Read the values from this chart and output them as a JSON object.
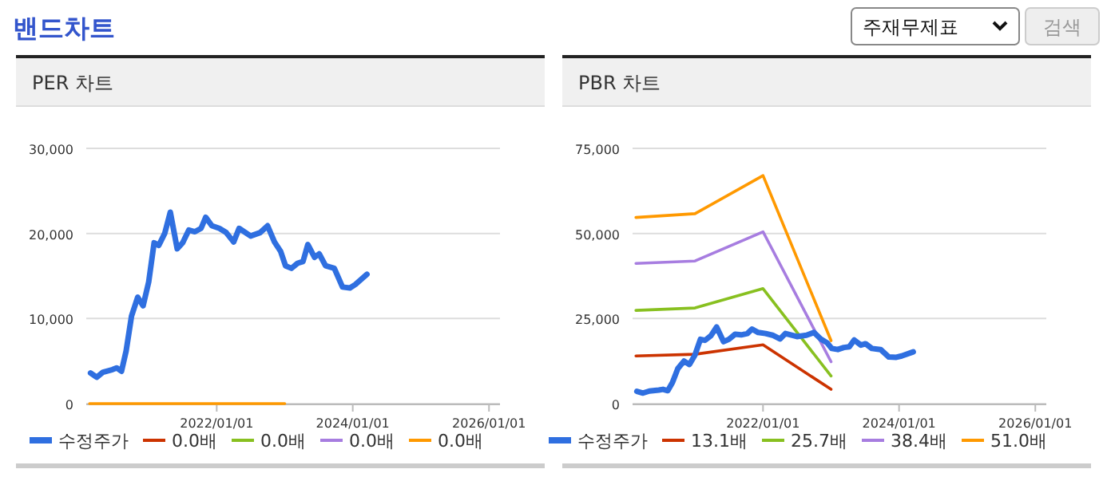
{
  "chart_data": [
    {
      "type": "other",
      "title": "밴드차트",
      "annotations": [
        "주재무제표",
        "검색"
      ]
    },
    {
      "type": "line",
      "title": "PER 차트",
      "xlim": [
        "2020-02-01",
        "2026-03-01"
      ],
      "ylim": [
        0,
        30000
      ],
      "yticks": [
        0,
        {
          "value": 10000,
          "label": "10,000"
        },
        {
          "value": 20000,
          "label": "20,000"
        },
        {
          "value": 30000,
          "label": "30,000"
        }
      ],
      "xticks": [
        {
          "value": "2022-01-01",
          "label": "2022/01/01"
        },
        {
          "value": "2024-01-01",
          "label": "2024/01/01"
        },
        {
          "value": "2026-01-01",
          "label": "2026/01/01"
        }
      ],
      "grid": "y",
      "legend": "bottom",
      "series": [
        {
          "name": "수정주가",
          "color": "#2f6fe0",
          "x": [
            "2020-02-24",
            "2020-03-28",
            "2020-05-01",
            "2020-06-21",
            "2020-07-13",
            "2020-08-08",
            "2020-09-02",
            "2020-10-01",
            "2020-11-03",
            "2020-12-02",
            "2021-01-01",
            "2021-01-30",
            "2021-02-24",
            "2021-03-28",
            "2021-04-27",
            "2021-06-03",
            "2021-07-02",
            "2021-08-04",
            "2021-09-06",
            "2021-10-09",
            "2021-11-03",
            "2021-12-06",
            "2022-01-15",
            "2022-02-21",
            "2022-04-02",
            "2022-05-01",
            "2022-07-02",
            "2022-08-22",
            "2022-10-01",
            "2022-11-07",
            "2022-12-10",
            "2023-01-05",
            "2023-02-06",
            "2023-03-11",
            "2023-04-09",
            "2023-05-05",
            "2023-06-10",
            "2023-07-05",
            "2023-08-08",
            "2023-09-24",
            "2023-11-07",
            "2023-12-17",
            "2024-01-15",
            "2024-03-17"
          ],
          "values": [
            3600,
            3100,
            3700,
            4000,
            4200,
            3800,
            6200,
            10300,
            12500,
            11500,
            14300,
            18900,
            18600,
            20000,
            22500,
            18200,
            18900,
            20400,
            20200,
            20600,
            21900,
            20900,
            20600,
            20100,
            19000,
            20600,
            19700,
            20100,
            20900,
            19000,
            17900,
            16200,
            15900,
            16500,
            16700,
            18700,
            17200,
            17600,
            16200,
            15900,
            13700,
            13600,
            14000,
            15200
          ]
        },
        {
          "name": "0.0배",
          "color": "#cc3300"
        },
        {
          "name": "0.0배",
          "color": "#88c020"
        },
        {
          "name": "0.0배",
          "color": "#a77de0"
        },
        {
          "name": "0.0배",
          "color": "#ff9900",
          "x": [
            "2020-02-19",
            "2021-01-01",
            "2022-01-01",
            "2023-01-01"
          ],
          "values": [
            0,
            0,
            0,
            0
          ]
        }
      ]
    },
    {
      "type": "line",
      "title": "PBR 차트",
      "xlim": [
        "2020-02-01",
        "2026-03-01"
      ],
      "ylim": [
        0,
        75000
      ],
      "yticks": [
        0,
        {
          "value": 25000,
          "label": "25,000"
        },
        {
          "value": 50000,
          "label": "50,000"
        },
        {
          "value": 75000,
          "label": "75,000"
        }
      ],
      "xticks": [
        {
          "value": "2022-01-01",
          "label": "2022/01/01"
        },
        {
          "value": "2024-01-01",
          "label": "2024/01/01"
        },
        {
          "value": "2026-01-01",
          "label": "2026/01/01"
        }
      ],
      "grid": "y",
      "legend": "bottom",
      "series": [
        {
          "name": "수정주가",
          "color": "#2f6fe0",
          "x": [
            "2020-02-24",
            "2020-03-28",
            "2020-05-01",
            "2020-06-21",
            "2020-07-13",
            "2020-08-08",
            "2020-09-02",
            "2020-10-01",
            "2020-11-03",
            "2020-12-02",
            "2021-01-01",
            "2021-01-30",
            "2021-02-24",
            "2021-03-28",
            "2021-04-27",
            "2021-06-03",
            "2021-07-02",
            "2021-08-04",
            "2021-09-06",
            "2021-10-09",
            "2021-11-03",
            "2021-12-06",
            "2022-01-15",
            "2022-02-21",
            "2022-04-02",
            "2022-05-01",
            "2022-07-02",
            "2022-08-22",
            "2022-10-01",
            "2022-11-07",
            "2022-12-10",
            "2023-01-05",
            "2023-02-06",
            "2023-03-11",
            "2023-04-09",
            "2023-05-05",
            "2023-06-10",
            "2023-07-05",
            "2023-08-08",
            "2023-09-24",
            "2023-11-07",
            "2023-12-17",
            "2024-01-15",
            "2024-03-17"
          ],
          "values": [
            3600,
            3100,
            3700,
            4000,
            4200,
            3800,
            6200,
            10300,
            12500,
            11500,
            14300,
            18900,
            18600,
            20000,
            22500,
            18200,
            18900,
            20400,
            20200,
            20600,
            21900,
            20900,
            20600,
            20100,
            19000,
            20600,
            19700,
            20100,
            20900,
            19000,
            17900,
            16200,
            15900,
            16500,
            16700,
            18700,
            17200,
            17600,
            16200,
            15900,
            13700,
            13600,
            14000,
            15200
          ]
        },
        {
          "name": "13.1배",
          "color": "#cc3300",
          "x": [
            "2020-02-19",
            "2021-01-01",
            "2022-01-01",
            "2023-01-01"
          ],
          "values": [
            14000,
            14500,
            17300,
            4200
          ]
        },
        {
          "name": "25.7배",
          "color": "#88c020",
          "x": [
            "2020-02-19",
            "2021-01-01",
            "2022-01-01",
            "2023-01-01"
          ],
          "values": [
            27400,
            28100,
            33800,
            8100
          ]
        },
        {
          "name": "38.4배",
          "color": "#a77de0",
          "x": [
            "2020-02-19",
            "2021-01-01",
            "2022-01-01",
            "2023-01-01"
          ],
          "values": [
            41200,
            41900,
            50500,
            12300
          ]
        },
        {
          "name": "51.0배",
          "color": "#ff9900",
          "x": [
            "2020-02-19",
            "2021-01-01",
            "2022-01-01",
            "2023-01-01"
          ],
          "values": [
            54700,
            55800,
            67000,
            18500
          ]
        }
      ]
    }
  ]
}
